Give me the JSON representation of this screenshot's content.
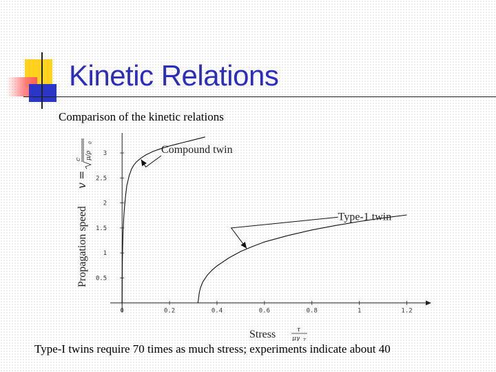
{
  "slide": {
    "title": "Kinetic Relations",
    "subtitle": "Comparison of the kinetic relations",
    "caption": "Type-I twins require 70 times as much stress; experiments indicate about 40"
  },
  "colors": {
    "title": "#2b2dbf",
    "accent_yellow": "#ffd21e",
    "accent_blue": "#2b35c8",
    "accent_red": "#ff5b5b"
  },
  "chart_data": {
    "type": "line",
    "xlabel": "Stress",
    "xlabel_formula": {
      "numerator": "τ",
      "denominator": "μγ",
      "sub": "T"
    },
    "ylabel": "Propagation speed",
    "ylabel_formula": {
      "var": "v",
      "eq": "=",
      "numerator": "c",
      "root": "μ/ρ",
      "sub": "0"
    },
    "xlim": [
      -0.05,
      1.3
    ],
    "ylim": [
      -0.1,
      3.4
    ],
    "xticks": [
      0,
      0.2,
      0.4,
      0.6,
      0.8,
      1,
      1.2
    ],
    "xtick_labels": [
      "0",
      "0.2",
      "0.4",
      "0.6",
      "0.8",
      "1",
      "1.2"
    ],
    "yticks": [
      0.5,
      1,
      1.5,
      2,
      2.5,
      3
    ],
    "ytick_labels": [
      "0.5",
      "1",
      "1.5",
      "2",
      "2.5",
      "3"
    ],
    "grid": false,
    "series": [
      {
        "name": "Compound twin",
        "x": [
          0.0,
          0.001,
          0.002,
          0.004,
          0.007,
          0.01,
          0.015,
          0.02,
          0.03,
          0.04,
          0.05,
          0.06,
          0.08,
          0.1,
          0.13,
          0.16,
          0.2,
          0.25,
          0.3,
          0.35
        ],
        "y": [
          0.0,
          0.75,
          1.05,
          1.4,
          1.7,
          1.92,
          2.15,
          2.35,
          2.55,
          2.68,
          2.76,
          2.82,
          2.9,
          2.96,
          3.03,
          3.08,
          3.14,
          3.2,
          3.26,
          3.32
        ]
      },
      {
        "name": "Type-1 twin",
        "x": [
          0.32,
          0.325,
          0.33,
          0.34,
          0.36,
          0.38,
          0.4,
          0.45,
          0.5,
          0.55,
          0.6,
          0.7,
          0.8,
          0.9,
          1.0,
          1.1,
          1.2
        ],
        "y": [
          0.0,
          0.2,
          0.3,
          0.42,
          0.56,
          0.66,
          0.74,
          0.9,
          1.03,
          1.13,
          1.22,
          1.35,
          1.46,
          1.55,
          1.63,
          1.7,
          1.76
        ]
      }
    ],
    "annotations": [
      {
        "text": "Compound twin",
        "series": 0
      },
      {
        "text": "Type-1 twin",
        "series": 1
      }
    ]
  }
}
